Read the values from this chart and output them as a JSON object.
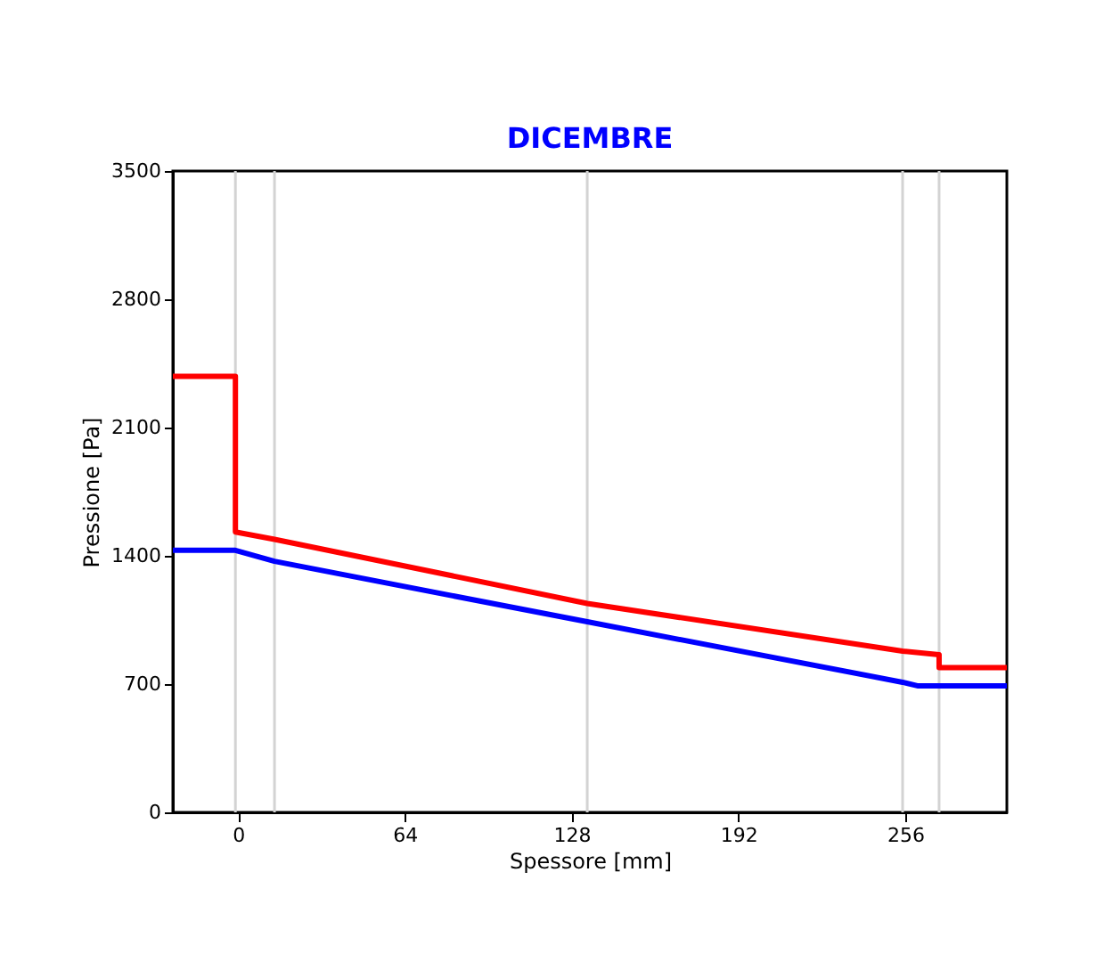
{
  "chart_data": {
    "type": "line",
    "title": "DICEMBRE",
    "xlabel": "Spessore [mm]",
    "ylabel": "Pressione [Pa]",
    "xlim": [
      -25,
      295
    ],
    "xticks": [
      0,
      64,
      128,
      192,
      256
    ],
    "ylim": [
      0,
      3500
    ],
    "yticks": [
      0,
      700,
      1400,
      2100,
      2800,
      3500
    ],
    "grid": false,
    "marker": "none",
    "line_style": "solid",
    "series": [
      {
        "color": "#ff0000",
        "x": [
          -25,
          -1,
          -1,
          14,
          134,
          255,
          269,
          269,
          295
        ],
        "values": [
          2380,
          2380,
          1530,
          1490,
          1140,
          880,
          860,
          790,
          790
        ]
      },
      {
        "color": "#0000ff",
        "x": [
          -25,
          -1,
          14,
          134,
          255,
          261,
          295
        ],
        "values": [
          1430,
          1430,
          1370,
          1040,
          710,
          690,
          690
        ]
      }
    ],
    "ref_lines": [
      {
        "axis": "x",
        "value": -1,
        "color": "#d3d3d3"
      },
      {
        "axis": "x",
        "value": 14,
        "color": "#d3d3d3"
      },
      {
        "axis": "x",
        "value": 134,
        "color": "#d3d3d3"
      },
      {
        "axis": "x",
        "value": 255,
        "color": "#d3d3d3"
      },
      {
        "axis": "x",
        "value": 269,
        "color": "#d3d3d3"
      }
    ]
  }
}
